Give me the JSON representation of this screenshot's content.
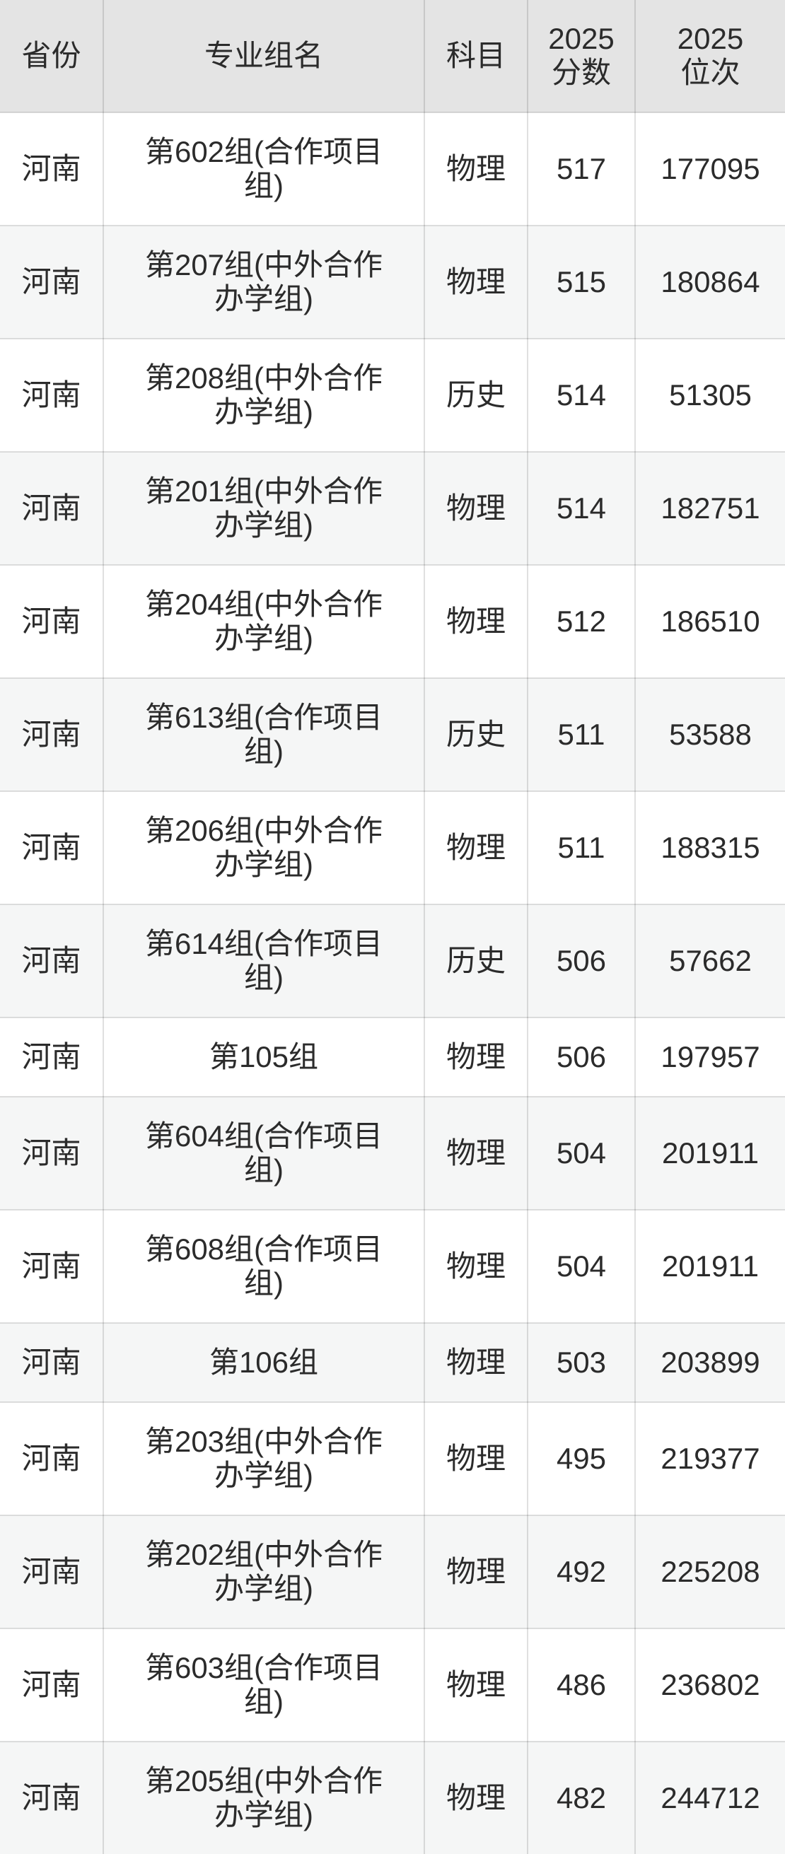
{
  "colors": {
    "header_bg": "#e4e4e4",
    "row_bg": "#ffffff",
    "row_alt_bg": "#f5f6f6",
    "text": "#2b2b2b",
    "border": "#d9d9d9"
  },
  "table": {
    "columns": [
      {
        "key": "province",
        "label": "省份"
      },
      {
        "key": "group",
        "label": "专业组名"
      },
      {
        "key": "subject",
        "label": "科目"
      },
      {
        "key": "score",
        "label": "2025\n分数"
      },
      {
        "key": "rank",
        "label": "2025\n位次"
      }
    ],
    "rows": [
      {
        "province": "河南",
        "group": "第602组(合作项目组)",
        "subject": "物理",
        "score": "517",
        "rank": "177095"
      },
      {
        "province": "河南",
        "group": "第207组(中外合作办学组)",
        "subject": "物理",
        "score": "515",
        "rank": "180864"
      },
      {
        "province": "河南",
        "group": "第208组(中外合作办学组)",
        "subject": "历史",
        "score": "514",
        "rank": "51305"
      },
      {
        "province": "河南",
        "group": "第201组(中外合作办学组)",
        "subject": "物理",
        "score": "514",
        "rank": "182751"
      },
      {
        "province": "河南",
        "group": "第204组(中外合作办学组)",
        "subject": "物理",
        "score": "512",
        "rank": "186510"
      },
      {
        "province": "河南",
        "group": "第613组(合作项目组)",
        "subject": "历史",
        "score": "511",
        "rank": "53588"
      },
      {
        "province": "河南",
        "group": "第206组(中外合作办学组)",
        "subject": "物理",
        "score": "511",
        "rank": "188315"
      },
      {
        "province": "河南",
        "group": "第614组(合作项目组)",
        "subject": "历史",
        "score": "506",
        "rank": "57662"
      },
      {
        "province": "河南",
        "group": "第105组",
        "subject": "物理",
        "score": "506",
        "rank": "197957"
      },
      {
        "province": "河南",
        "group": "第604组(合作项目组)",
        "subject": "物理",
        "score": "504",
        "rank": "201911"
      },
      {
        "province": "河南",
        "group": "第608组(合作项目组)",
        "subject": "物理",
        "score": "504",
        "rank": "201911"
      },
      {
        "province": "河南",
        "group": "第106组",
        "subject": "物理",
        "score": "503",
        "rank": "203899"
      },
      {
        "province": "河南",
        "group": "第203组(中外合作办学组)",
        "subject": "物理",
        "score": "495",
        "rank": "219377"
      },
      {
        "province": "河南",
        "group": "第202组(中外合作办学组)",
        "subject": "物理",
        "score": "492",
        "rank": "225208"
      },
      {
        "province": "河南",
        "group": "第603组(合作项目组)",
        "subject": "物理",
        "score": "486",
        "rank": "236802"
      },
      {
        "province": "河南",
        "group": "第205组(中外合作办学组)",
        "subject": "物理",
        "score": "482",
        "rank": "244712"
      }
    ]
  }
}
